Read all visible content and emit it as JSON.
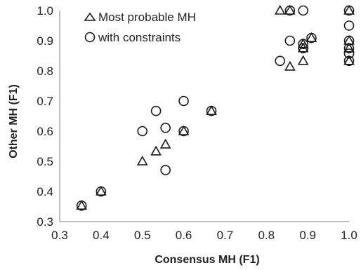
{
  "chart_data": {
    "type": "scatter",
    "xlabel": "Consensus MH (F1)",
    "ylabel": "Other MH (F1)",
    "xlim": [
      0.3,
      1.0
    ],
    "ylim": [
      0.3,
      1.0
    ],
    "x_ticks": [
      "0.3",
      "0.4",
      "0.5",
      "0.6",
      "0.7",
      "0.8",
      "0.9",
      "1.0"
    ],
    "y_ticks": [
      "0.3",
      "0.4",
      "0.5",
      "0.6",
      "0.7",
      "0.8",
      "0.9",
      "1.0"
    ],
    "grid": false,
    "legend_position": "top-left",
    "series": [
      {
        "name": "Most probable MH",
        "marker": "triangle",
        "points": [
          [
            0.353,
            0.353
          ],
          [
            0.4,
            0.4
          ],
          [
            0.5,
            0.5
          ],
          [
            0.533,
            0.533
          ],
          [
            0.556,
            0.556
          ],
          [
            0.6,
            0.6
          ],
          [
            0.667,
            0.667
          ],
          [
            0.833,
            1.0
          ],
          [
            0.857,
            1.0
          ],
          [
            0.857,
            0.814
          ],
          [
            0.889,
            0.833
          ],
          [
            0.889,
            0.875
          ],
          [
            0.889,
            0.889
          ],
          [
            0.909,
            0.909
          ],
          [
            1.0,
            1.0
          ],
          [
            1.0,
            0.9
          ],
          [
            1.0,
            0.875
          ],
          [
            1.0,
            0.833
          ]
        ]
      },
      {
        "name": "with constraints",
        "marker": "circle",
        "points": [
          [
            0.353,
            0.353
          ],
          [
            0.4,
            0.4
          ],
          [
            0.5,
            0.6
          ],
          [
            0.533,
            0.667
          ],
          [
            0.556,
            0.611
          ],
          [
            0.556,
            0.471
          ],
          [
            0.6,
            0.6
          ],
          [
            0.6,
            0.7
          ],
          [
            0.667,
            0.667
          ],
          [
            0.833,
            0.833
          ],
          [
            0.857,
            0.9
          ],
          [
            0.857,
            1.0
          ],
          [
            0.889,
            1.0
          ],
          [
            0.889,
            0.889
          ],
          [
            0.889,
            0.875
          ],
          [
            0.909,
            0.909
          ],
          [
            1.0,
            1.0
          ],
          [
            1.0,
            0.95
          ],
          [
            1.0,
            0.9
          ],
          [
            1.0,
            0.875
          ],
          [
            1.0,
            0.857
          ],
          [
            1.0,
            0.833
          ]
        ]
      }
    ]
  }
}
